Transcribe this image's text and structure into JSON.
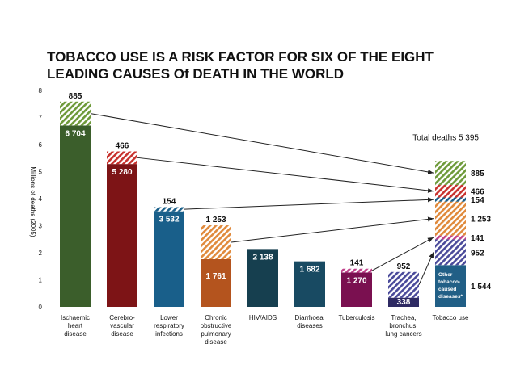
{
  "chart_data": {
    "type": "bar",
    "title": [
      "TOBACCO USE IS A RISK FACTOR FOR SIX OF THE EIGHT",
      "LEADING CAUSES Of DEATH IN THE WORLD"
    ],
    "ylabel": "Millions of deaths (2005)",
    "ylim": [
      0,
      8
    ],
    "yticks": [
      "0",
      "1",
      "2",
      "3",
      "4",
      "5",
      "6",
      "7",
      "8"
    ],
    "tobacco_unit": "thousands",
    "colors": {
      "ischaemic": "#3b5e2b",
      "cerebro": "#7d1416",
      "lower_resp": "#195f8a",
      "copd": "#b4541e",
      "hiv": "#163f4f",
      "diarrhoeal": "#184a62",
      "tb": "#7a1050",
      "trachea": "#2e2a63",
      "other": "#215f86",
      "hatch_ischaemic": "#6e9a3a",
      "hatch_cerebro": "#c8322e",
      "hatch_lower": "#7fb8d8",
      "hatch_copd": "#e08a3c",
      "hatch_tb": "#c0408a",
      "hatch_trachea": "#4a4a9a"
    },
    "categories": [
      {
        "key": "ischaemic",
        "label": [
          "Ischaemic",
          "heart",
          "disease"
        ],
        "other": 6704,
        "tobacco": 885,
        "other_label": "6 704",
        "tobacco_label": "885"
      },
      {
        "key": "cerebro",
        "label": [
          "Cerebro-",
          "vascular",
          "disease"
        ],
        "other": 5280,
        "tobacco": 466,
        "other_label": "5 280",
        "tobacco_label": "466"
      },
      {
        "key": "lower_resp",
        "label": [
          "Lower",
          "respiratory",
          "infections"
        ],
        "other": 3532,
        "tobacco": 154,
        "other_label": "3 532",
        "tobacco_label": "154"
      },
      {
        "key": "copd",
        "label": [
          "Chronic",
          "obstructive",
          "pulmonary",
          "disease"
        ],
        "other": 1761,
        "tobacco": 1253,
        "other_label": "1 761",
        "tobacco_label": "1 253"
      },
      {
        "key": "hiv",
        "label": [
          "HIV/AIDS"
        ],
        "other": 2138,
        "tobacco": 0,
        "other_label": "2 138",
        "tobacco_label": ""
      },
      {
        "key": "diarrhoeal",
        "label": [
          "Diarrhoeal",
          "diseases"
        ],
        "other": 1682,
        "tobacco": 0,
        "other_label": "1 682",
        "tobacco_label": ""
      },
      {
        "key": "tb",
        "label": [
          "Tuberculosis"
        ],
        "other": 1270,
        "tobacco": 141,
        "other_label": "1 270",
        "tobacco_label": "141"
      },
      {
        "key": "trachea",
        "label": [
          "Trachea,",
          "bronchus,",
          "lung cancers"
        ],
        "other": 338,
        "tobacco": 952,
        "other_label": "338",
        "tobacco_label": "952"
      }
    ],
    "tobacco_bar": {
      "label": [
        "Tobacco use"
      ],
      "total_label": "Total deaths 5 395",
      "other_label": [
        "Other",
        "tobacco-",
        "caused",
        "diseases*"
      ],
      "segments": [
        {
          "key": "other",
          "value": 1544,
          "label": "1 544"
        },
        {
          "key": "trachea",
          "value": 952,
          "label": "952"
        },
        {
          "key": "tb",
          "value": 141,
          "label": "141"
        },
        {
          "key": "copd",
          "value": 1253,
          "label": "1 253"
        },
        {
          "key": "lower_resp",
          "value": 154,
          "label": "154"
        },
        {
          "key": "cerebro",
          "value": 466,
          "label": "466"
        },
        {
          "key": "ischaemic",
          "value": 885,
          "label": "885"
        }
      ]
    }
  }
}
